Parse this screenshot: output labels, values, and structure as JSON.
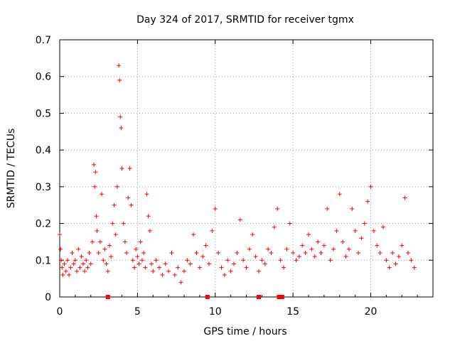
{
  "chart_data": {
    "type": "scatter",
    "title": "Day 324 of 2017, SRMTID for receiver tgmx",
    "xlabel": "GPS time / hours",
    "ylabel": "SRMTID / TECUs",
    "xlim": [
      0,
      24
    ],
    "ylim": [
      0,
      0.7
    ],
    "grid": true,
    "x_ticks": [
      "0",
      "5",
      "10",
      "15",
      "20"
    ],
    "y_ticks": [
      "0",
      "0.1",
      "0.2",
      "0.3",
      "0.4",
      "0.5",
      "0.6",
      "0.7"
    ],
    "marker": "+",
    "color": "#ff0000",
    "series": [
      {
        "name": "SRMTID",
        "x": [
          0.0,
          0.05,
          0.1,
          0.15,
          0.2,
          0.3,
          0.4,
          0.5,
          0.6,
          0.7,
          0.8,
          0.9,
          1.0,
          1.1,
          1.2,
          1.3,
          1.4,
          1.5,
          1.6,
          1.7,
          1.8,
          1.9,
          2.0,
          2.1,
          2.2,
          2.25,
          2.3,
          2.35,
          2.4,
          2.5,
          2.6,
          2.7,
          2.8,
          2.9,
          3.0,
          3.1,
          3.2,
          3.3,
          3.4,
          3.5,
          3.6,
          3.7,
          3.8,
          3.85,
          3.9,
          3.95,
          4.0,
          4.1,
          4.2,
          4.3,
          4.4,
          4.5,
          4.6,
          4.7,
          4.8,
          4.9,
          5.0,
          5.1,
          5.2,
          5.3,
          5.4,
          5.5,
          5.6,
          5.7,
          5.8,
          5.9,
          6.0,
          6.2,
          6.4,
          6.6,
          6.8,
          7.0,
          7.2,
          7.4,
          7.6,
          7.8,
          8.0,
          8.2,
          8.4,
          8.6,
          8.8,
          9.0,
          9.2,
          9.4,
          9.6,
          9.8,
          10.0,
          10.2,
          10.4,
          10.6,
          10.8,
          11.0,
          11.2,
          11.4,
          11.6,
          11.8,
          12.0,
          12.2,
          12.4,
          12.6,
          12.8,
          13.0,
          13.2,
          13.4,
          13.6,
          13.8,
          14.0,
          14.2,
          14.4,
          14.6,
          14.8,
          15.0,
          15.2,
          15.4,
          15.6,
          15.8,
          16.0,
          16.2,
          16.4,
          16.6,
          16.8,
          17.0,
          17.2,
          17.4,
          17.6,
          17.8,
          18.0,
          18.2,
          18.4,
          18.6,
          18.8,
          19.0,
          19.2,
          19.4,
          19.6,
          19.8,
          20.0,
          20.2,
          20.4,
          20.6,
          20.8,
          21.0,
          21.2,
          21.4,
          21.6,
          21.8,
          22.0,
          22.2,
          22.4,
          22.6,
          22.8
        ],
        "y": [
          0.17,
          0.13,
          0.1,
          0.08,
          0.06,
          0.09,
          0.07,
          0.1,
          0.06,
          0.08,
          0.12,
          0.09,
          0.1,
          0.07,
          0.13,
          0.08,
          0.11,
          0.09,
          0.07,
          0.1,
          0.08,
          0.12,
          0.09,
          0.15,
          0.36,
          0.3,
          0.34,
          0.22,
          0.18,
          0.12,
          0.15,
          0.28,
          0.1,
          0.13,
          0.09,
          0.07,
          0.14,
          0.11,
          0.2,
          0.25,
          0.17,
          0.3,
          0.63,
          0.59,
          0.49,
          0.46,
          0.35,
          0.2,
          0.15,
          0.12,
          0.27,
          0.35,
          0.25,
          0.1,
          0.08,
          0.13,
          0.11,
          0.09,
          0.15,
          0.1,
          0.12,
          0.08,
          0.28,
          0.22,
          0.18,
          0.09,
          0.07,
          0.1,
          0.08,
          0.06,
          0.09,
          0.07,
          0.12,
          0.06,
          0.08,
          0.04,
          0.07,
          0.1,
          0.09,
          0.17,
          0.12,
          0.08,
          0.11,
          0.14,
          0.09,
          0.18,
          0.24,
          0.12,
          0.08,
          0.06,
          0.1,
          0.07,
          0.09,
          0.12,
          0.21,
          0.1,
          0.08,
          0.13,
          0.17,
          0.11,
          0.07,
          0.1,
          0.09,
          0.13,
          0.12,
          0.19,
          0.24,
          0.1,
          0.08,
          0.13,
          0.2,
          0.12,
          0.1,
          0.11,
          0.14,
          0.12,
          0.17,
          0.13,
          0.11,
          0.15,
          0.12,
          0.14,
          0.24,
          0.1,
          0.13,
          0.18,
          0.28,
          0.15,
          0.11,
          0.13,
          0.24,
          0.18,
          0.12,
          0.16,
          0.2,
          0.26,
          0.3,
          0.18,
          0.14,
          0.12,
          0.19,
          0.1,
          0.08,
          0.12,
          0.09,
          0.11,
          0.14,
          0.27,
          0.12,
          0.1,
          0.08
        ]
      }
    ],
    "markers_on_axis": {
      "x": [
        3.1,
        9.5,
        12.8,
        14.1,
        14.3
      ],
      "y": 0
    }
  }
}
